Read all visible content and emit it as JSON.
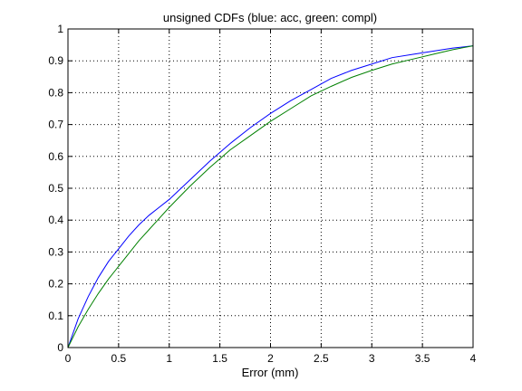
{
  "chart_data": {
    "type": "line",
    "title": "unsigned CDFs (blue: acc, green: compl)",
    "xlabel": "Error (mm)",
    "ylabel": "",
    "xlim": [
      0,
      4
    ],
    "ylim": [
      0,
      1
    ],
    "xticks": [
      0,
      0.5,
      1,
      1.5,
      2,
      2.5,
      3,
      3.5,
      4
    ],
    "xtick_labels": [
      "0",
      "0.5",
      "1",
      "1.5",
      "2",
      "2.5",
      "3",
      "3.5",
      "4"
    ],
    "yticks": [
      0,
      0.1,
      0.2,
      0.3,
      0.4,
      0.5,
      0.6,
      0.7,
      0.8,
      0.9,
      1
    ],
    "ytick_labels": [
      "0",
      "0.1",
      "0.2",
      "0.3",
      "0.4",
      "0.5",
      "0.6",
      "0.7",
      "0.8",
      "0.9",
      "1"
    ],
    "grid": true,
    "series": [
      {
        "color": "#0000ff",
        "x": [
          0,
          0.1,
          0.2,
          0.3,
          0.4,
          0.5,
          0.6,
          0.7,
          0.8,
          0.9,
          1.0,
          1.2,
          1.4,
          1.6,
          1.8,
          2.0,
          2.2,
          2.4,
          2.6,
          2.8,
          3.0,
          3.2,
          3.4,
          3.6,
          3.8,
          4.0
        ],
        "y": [
          0,
          0.09,
          0.16,
          0.22,
          0.27,
          0.31,
          0.35,
          0.385,
          0.415,
          0.44,
          0.465,
          0.525,
          0.585,
          0.64,
          0.69,
          0.735,
          0.775,
          0.81,
          0.845,
          0.87,
          0.89,
          0.91,
          0.92,
          0.93,
          0.94,
          0.947
        ]
      },
      {
        "color": "#008000",
        "x": [
          0,
          0.1,
          0.2,
          0.3,
          0.4,
          0.5,
          0.6,
          0.7,
          0.8,
          0.9,
          1.0,
          1.2,
          1.4,
          1.6,
          1.8,
          2.0,
          2.2,
          2.4,
          2.6,
          2.8,
          3.0,
          3.2,
          3.4,
          3.6,
          3.8,
          4.0
        ],
        "y": [
          0,
          0.065,
          0.12,
          0.17,
          0.215,
          0.255,
          0.295,
          0.335,
          0.37,
          0.405,
          0.44,
          0.505,
          0.565,
          0.62,
          0.665,
          0.71,
          0.75,
          0.79,
          0.82,
          0.848,
          0.87,
          0.89,
          0.905,
          0.92,
          0.935,
          0.947
        ]
      }
    ]
  }
}
